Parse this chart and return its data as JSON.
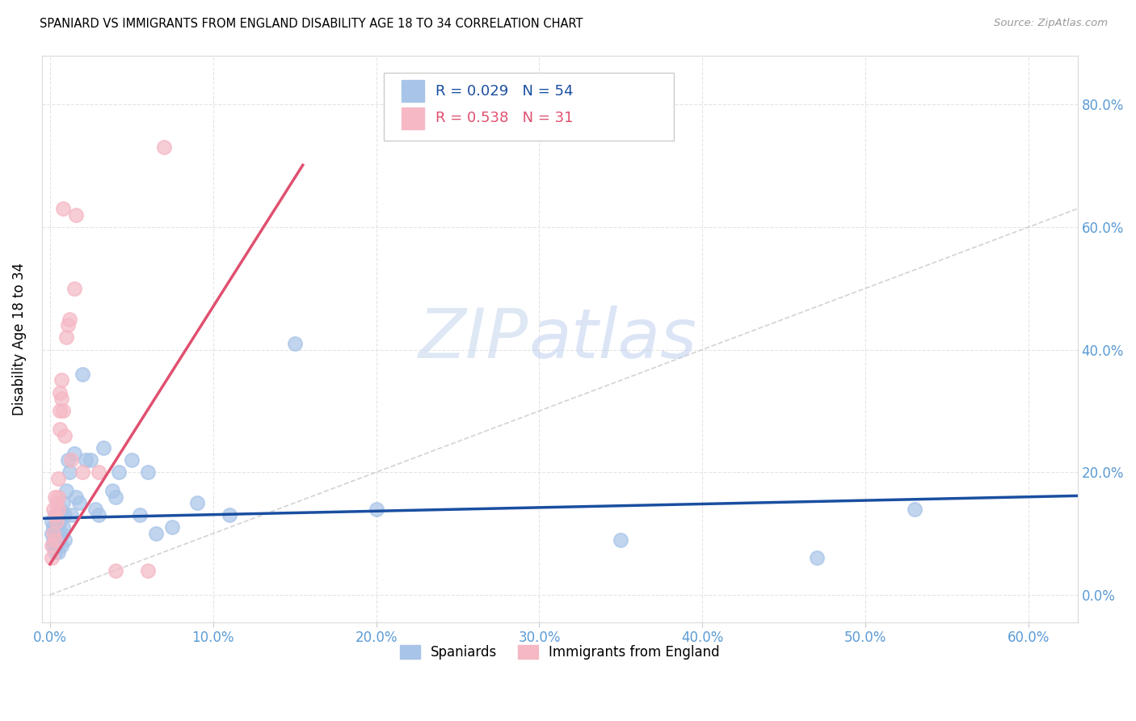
{
  "title": "SPANIARD VS IMMIGRANTS FROM ENGLAND DISABILITY AGE 18 TO 34 CORRELATION CHART",
  "source": "Source: ZipAtlas.com",
  "ylabel": "Disability Age 18 to 34",
  "legend_blue_label": "Spaniards",
  "legend_pink_label": "Immigrants from England",
  "legend_blue_r": "R = 0.029",
  "legend_blue_n": "N = 54",
  "legend_pink_r": "R = 0.538",
  "legend_pink_n": "N = 31",
  "blue_color": "#a8c4e8",
  "pink_color": "#f5b8c4",
  "blue_line_color": "#1a4fa0",
  "pink_line_color": "#e05070",
  "diag_line_color": "#c8c8c8",
  "watermark_zip": "ZIP",
  "watermark_atlas": "atlas",
  "blue_scatter_x": [
    0.001,
    0.001,
    0.002,
    0.002,
    0.002,
    0.003,
    0.003,
    0.003,
    0.004,
    0.004,
    0.004,
    0.004,
    0.005,
    0.005,
    0.005,
    0.005,
    0.006,
    0.006,
    0.006,
    0.007,
    0.007,
    0.007,
    0.008,
    0.008,
    0.009,
    0.009,
    0.01,
    0.011,
    0.012,
    0.013,
    0.015,
    0.016,
    0.018,
    0.02,
    0.022,
    0.025,
    0.028,
    0.03,
    0.033,
    0.038,
    0.04,
    0.042,
    0.05,
    0.055,
    0.06,
    0.065,
    0.075,
    0.09,
    0.11,
    0.15,
    0.2,
    0.35,
    0.47,
    0.53
  ],
  "blue_scatter_y": [
    0.12,
    0.1,
    0.08,
    0.11,
    0.09,
    0.13,
    0.1,
    0.07,
    0.12,
    0.09,
    0.11,
    0.08,
    0.13,
    0.1,
    0.07,
    0.11,
    0.14,
    0.09,
    0.12,
    0.13,
    0.1,
    0.08,
    0.15,
    0.11,
    0.13,
    0.09,
    0.17,
    0.22,
    0.2,
    0.13,
    0.23,
    0.16,
    0.15,
    0.36,
    0.22,
    0.22,
    0.14,
    0.13,
    0.24,
    0.17,
    0.16,
    0.2,
    0.22,
    0.13,
    0.2,
    0.1,
    0.11,
    0.15,
    0.13,
    0.41,
    0.14,
    0.09,
    0.06,
    0.14
  ],
  "pink_scatter_x": [
    0.001,
    0.001,
    0.002,
    0.002,
    0.003,
    0.003,
    0.003,
    0.004,
    0.004,
    0.005,
    0.005,
    0.005,
    0.006,
    0.006,
    0.006,
    0.007,
    0.007,
    0.008,
    0.008,
    0.009,
    0.01,
    0.011,
    0.012,
    0.013,
    0.015,
    0.016,
    0.02,
    0.03,
    0.04,
    0.06,
    0.07
  ],
  "pink_scatter_y": [
    0.06,
    0.08,
    0.1,
    0.14,
    0.09,
    0.13,
    0.16,
    0.12,
    0.15,
    0.16,
    0.14,
    0.19,
    0.3,
    0.27,
    0.33,
    0.32,
    0.35,
    0.3,
    0.63,
    0.26,
    0.42,
    0.44,
    0.45,
    0.22,
    0.5,
    0.62,
    0.2,
    0.2,
    0.04,
    0.04,
    0.73
  ],
  "xlim": [
    -0.005,
    0.63
  ],
  "ylim": [
    -0.045,
    0.88
  ],
  "xticks": [
    0.0,
    0.1,
    0.2,
    0.3,
    0.4,
    0.5,
    0.6
  ],
  "yticks": [
    0.0,
    0.2,
    0.4,
    0.6,
    0.8
  ],
  "background_color": "#ffffff",
  "grid_color": "#e4e4e4",
  "blue_reg_slope": 0.058,
  "blue_reg_intercept": 0.125,
  "pink_reg_slope": 4.2,
  "pink_reg_intercept": 0.05
}
